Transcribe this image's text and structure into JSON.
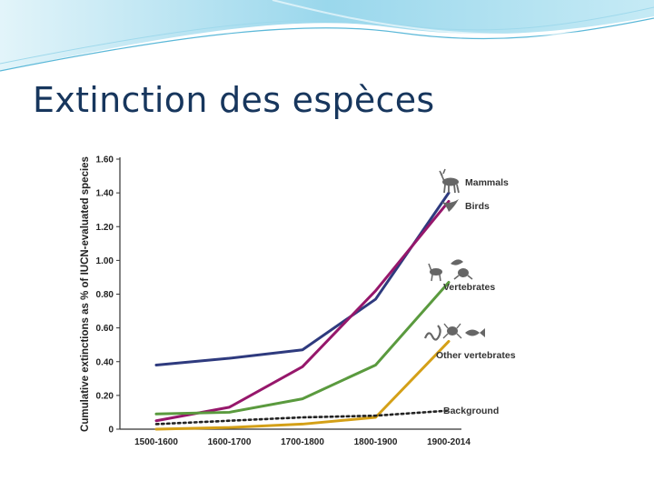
{
  "slide": {
    "title": "Extinction des espèces"
  },
  "chart_data": {
    "type": "line",
    "title": "",
    "xlabel": "",
    "ylabel": "Cumulative extinctions as % of IUCN-evaluated species",
    "categories": [
      "1500-1600",
      "1600-1700",
      "1700-1800",
      "1800-1900",
      "1900-2014"
    ],
    "ylim": [
      0,
      1.6
    ],
    "yticks": [
      "0",
      "0.20",
      "0.40",
      "0.60",
      "0.80",
      "1.00",
      "1.20",
      "1.40",
      "1.60"
    ],
    "grid": false,
    "legend": "labels at line ends (right)",
    "series": [
      {
        "name": "Mammals",
        "color": "#2e3a7e",
        "values": [
          0.38,
          0.42,
          0.47,
          0.77,
          1.4
        ],
        "style": "solid",
        "icon": "deer-icon"
      },
      {
        "name": "Birds",
        "color": "#96176b",
        "values": [
          0.05,
          0.13,
          0.37,
          0.82,
          1.35
        ],
        "style": "solid",
        "icon": "bird-icon"
      },
      {
        "name": "Vertebrates",
        "color": "#5a9a3e",
        "values": [
          0.09,
          0.1,
          0.18,
          0.38,
          0.87
        ],
        "style": "solid",
        "icon": "animals-icon"
      },
      {
        "name": "Other vertebrates",
        "color": "#d4a017",
        "values": [
          0.0,
          0.01,
          0.03,
          0.07,
          0.52
        ],
        "style": "solid",
        "icon": "snake-frog-fish-icon"
      },
      {
        "name": "Background",
        "color": "#222222",
        "values": [
          0.03,
          0.05,
          0.07,
          0.08,
          0.11
        ],
        "style": "dotted",
        "icon": ""
      }
    ]
  }
}
